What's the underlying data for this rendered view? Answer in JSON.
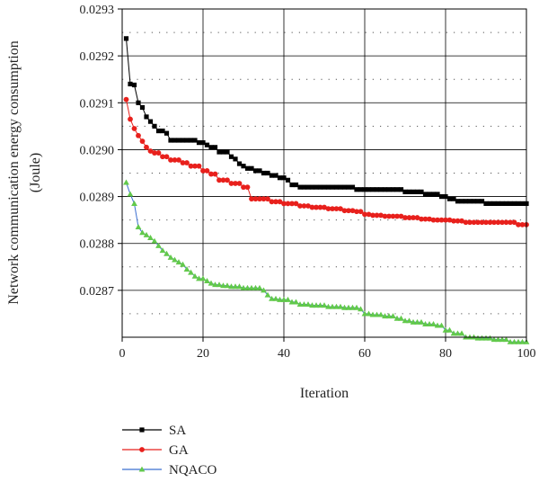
{
  "chart_data": {
    "type": "line",
    "title": "",
    "xlabel": "Iteration",
    "ylabel_lines": [
      "Network communication energy consumption",
      "(Joule)"
    ],
    "xlim": [
      0,
      100
    ],
    "ylim": [
      0.0286,
      0.0293
    ],
    "xticks": [
      "0",
      "20",
      "40",
      "60",
      "80",
      "100"
    ],
    "yticks": [
      "0.0287",
      "0.0288",
      "0.0289",
      "0.0290",
      "0.0291",
      "0.0292",
      "0.0293"
    ],
    "grid": "major solid, minor dotted (y)",
    "legend_position": "bottom-left",
    "series": [
      {
        "name": "SA",
        "color": "#000000",
        "marker": "square",
        "points": [
          [
            1,
            0.029237
          ],
          [
            2,
            0.02914
          ],
          [
            3,
            0.029138
          ],
          [
            4,
            0.0291
          ],
          [
            5,
            0.02909
          ],
          [
            6,
            0.02907
          ],
          [
            7,
            0.02906
          ],
          [
            8,
            0.02905
          ],
          [
            9,
            0.02904
          ],
          [
            11,
            0.029035
          ],
          [
            12,
            0.02902
          ],
          [
            19,
            0.029015
          ],
          [
            21,
            0.02901
          ],
          [
            22,
            0.029005
          ],
          [
            24,
            0.028995
          ],
          [
            27,
            0.028985
          ],
          [
            28,
            0.02898
          ],
          [
            29,
            0.02897
          ],
          [
            30,
            0.028965
          ],
          [
            31,
            0.02896
          ],
          [
            33,
            0.028955
          ],
          [
            35,
            0.02895
          ],
          [
            37,
            0.028945
          ],
          [
            39,
            0.02894
          ],
          [
            41,
            0.028935
          ],
          [
            42,
            0.028925
          ],
          [
            44,
            0.02892
          ],
          [
            58,
            0.028915
          ],
          [
            70,
            0.02891
          ],
          [
            75,
            0.028905
          ],
          [
            79,
            0.0289
          ],
          [
            81,
            0.028895
          ],
          [
            83,
            0.02889
          ],
          [
            90,
            0.028885
          ],
          [
            100,
            0.028885
          ]
        ]
      },
      {
        "name": "GA",
        "color": "#e8201c",
        "marker": "circle",
        "points": [
          [
            1,
            0.029107
          ],
          [
            2,
            0.029065
          ],
          [
            3,
            0.029045
          ],
          [
            4,
            0.02903
          ],
          [
            5,
            0.029018
          ],
          [
            6,
            0.029005
          ],
          [
            7,
            0.028997
          ],
          [
            8,
            0.028993
          ],
          [
            10,
            0.028985
          ],
          [
            12,
            0.028978
          ],
          [
            15,
            0.028972
          ],
          [
            17,
            0.028965
          ],
          [
            20,
            0.028955
          ],
          [
            22,
            0.028948
          ],
          [
            24,
            0.028935
          ],
          [
            27,
            0.028928
          ],
          [
            30,
            0.02892
          ],
          [
            32,
            0.028895
          ],
          [
            37,
            0.028889
          ],
          [
            40,
            0.028885
          ],
          [
            44,
            0.02888
          ],
          [
            47,
            0.028877
          ],
          [
            51,
            0.028874
          ],
          [
            55,
            0.02887
          ],
          [
            58,
            0.028868
          ],
          [
            60,
            0.028862
          ],
          [
            62,
            0.02886
          ],
          [
            65,
            0.028858
          ],
          [
            70,
            0.028855
          ],
          [
            74,
            0.028852
          ],
          [
            77,
            0.02885
          ],
          [
            82,
            0.028848
          ],
          [
            85,
            0.028845
          ],
          [
            98,
            0.02884
          ],
          [
            100,
            0.02884
          ]
        ]
      },
      {
        "name": "NQACO",
        "color": "#62c94b",
        "line_color": "#3b6fd0",
        "marker": "triangle",
        "points": [
          [
            1,
            0.02893
          ],
          [
            2,
            0.028905
          ],
          [
            3,
            0.028885
          ],
          [
            4,
            0.028835
          ],
          [
            5,
            0.028823
          ],
          [
            6,
            0.028818
          ],
          [
            7,
            0.028812
          ],
          [
            8,
            0.028805
          ],
          [
            9,
            0.028795
          ],
          [
            10,
            0.028785
          ],
          [
            11,
            0.028778
          ],
          [
            12,
            0.02877
          ],
          [
            13,
            0.028765
          ],
          [
            14,
            0.02876
          ],
          [
            15,
            0.028755
          ],
          [
            16,
            0.028745
          ],
          [
            17,
            0.028738
          ],
          [
            18,
            0.02873
          ],
          [
            19,
            0.028725
          ],
          [
            21,
            0.02872
          ],
          [
            22,
            0.028715
          ],
          [
            23,
            0.028712
          ],
          [
            25,
            0.02871
          ],
          [
            27,
            0.028708
          ],
          [
            30,
            0.028705
          ],
          [
            35,
            0.0287
          ],
          [
            36,
            0.02869
          ],
          [
            37,
            0.028682
          ],
          [
            39,
            0.02868
          ],
          [
            42,
            0.028675
          ],
          [
            44,
            0.02867
          ],
          [
            47,
            0.028668
          ],
          [
            51,
            0.028665
          ],
          [
            55,
            0.028663
          ],
          [
            59,
            0.02866
          ],
          [
            60,
            0.02865
          ],
          [
            62,
            0.028648
          ],
          [
            65,
            0.028645
          ],
          [
            68,
            0.02864
          ],
          [
            70,
            0.028635
          ],
          [
            72,
            0.028632
          ],
          [
            75,
            0.028628
          ],
          [
            78,
            0.028625
          ],
          [
            80,
            0.028615
          ],
          [
            82,
            0.028608
          ],
          [
            85,
            0.0286
          ],
          [
            88,
            0.028598
          ],
          [
            92,
            0.028595
          ],
          [
            96,
            0.02859
          ],
          [
            100,
            0.02859
          ]
        ]
      }
    ]
  }
}
